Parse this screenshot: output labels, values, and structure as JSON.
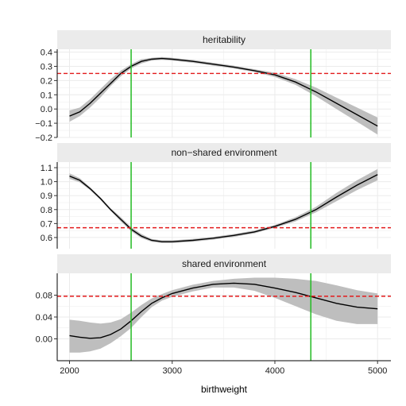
{
  "chart_data": {
    "type": "line",
    "xlabel": "birthweight",
    "xlim": [
      1880,
      5130
    ],
    "x_ticks": [
      2000,
      3000,
      4000,
      5000
    ],
    "x_tick_labels": [
      "2000",
      "3000",
      "4000",
      "5000"
    ],
    "vertical_lines": {
      "x": [
        2600,
        4350
      ],
      "color": "#22bb22"
    },
    "colors": {
      "line": "#000000",
      "ribbon": "#bebebe",
      "reference": "#e31a1c",
      "strip": "#ebebeb",
      "grid": "#ebebeb"
    },
    "grid": true,
    "panels": [
      {
        "title": "heritability",
        "ylim": [
          -0.2,
          0.42
        ],
        "y_ticks": [
          -0.2,
          -0.1,
          0.0,
          0.1,
          0.2,
          0.3,
          0.4
        ],
        "y_tick_labels": [
          "−0.2",
          "−0.1",
          "0.0",
          "0.1",
          "0.2",
          "0.3",
          "0.4"
        ],
        "hline": 0.25,
        "x": [
          2000,
          2100,
          2200,
          2300,
          2400,
          2500,
          2600,
          2700,
          2800,
          2900,
          3000,
          3200,
          3400,
          3600,
          3800,
          4000,
          4200,
          4400,
          4600,
          4800,
          5000
        ],
        "y": [
          -0.05,
          -0.02,
          0.04,
          0.11,
          0.18,
          0.25,
          0.3,
          0.335,
          0.35,
          0.355,
          0.35,
          0.335,
          0.315,
          0.295,
          0.27,
          0.24,
          0.19,
          0.12,
          0.04,
          -0.04,
          -0.12
        ],
        "lower": [
          -0.09,
          -0.05,
          0.01,
          0.08,
          0.16,
          0.23,
          0.285,
          0.32,
          0.34,
          0.345,
          0.34,
          0.325,
          0.305,
          0.285,
          0.26,
          0.225,
          0.17,
          0.09,
          0.0,
          -0.09,
          -0.18
        ],
        "upper": [
          -0.01,
          0.01,
          0.07,
          0.14,
          0.21,
          0.27,
          0.315,
          0.35,
          0.36,
          0.365,
          0.36,
          0.345,
          0.325,
          0.305,
          0.28,
          0.255,
          0.21,
          0.15,
          0.08,
          0.01,
          -0.06
        ]
      },
      {
        "title": "non−shared environment",
        "ylim": [
          0.52,
          1.14
        ],
        "y_ticks": [
          0.6,
          0.7,
          0.8,
          0.9,
          1.0,
          1.1
        ],
        "y_tick_labels": [
          "0.6",
          "0.7",
          "0.8",
          "0.9",
          "1.0",
          "1.1"
        ],
        "hline": 0.67,
        "x": [
          2000,
          2100,
          2200,
          2300,
          2400,
          2500,
          2600,
          2700,
          2800,
          2900,
          3000,
          3200,
          3400,
          3600,
          3800,
          4000,
          4200,
          4400,
          4600,
          4800,
          5000
        ],
        "y": [
          1.04,
          1.01,
          0.95,
          0.88,
          0.8,
          0.73,
          0.66,
          0.61,
          0.58,
          0.57,
          0.57,
          0.58,
          0.595,
          0.615,
          0.64,
          0.68,
          0.73,
          0.8,
          0.89,
          0.975,
          1.05
        ],
        "lower": [
          1.02,
          0.995,
          0.94,
          0.87,
          0.79,
          0.715,
          0.645,
          0.595,
          0.57,
          0.56,
          0.56,
          0.57,
          0.585,
          0.605,
          0.63,
          0.67,
          0.715,
          0.78,
          0.86,
          0.94,
          1.01
        ],
        "upper": [
          1.06,
          1.025,
          0.96,
          0.89,
          0.81,
          0.745,
          0.675,
          0.625,
          0.59,
          0.58,
          0.58,
          0.59,
          0.605,
          0.625,
          0.65,
          0.69,
          0.745,
          0.82,
          0.92,
          1.01,
          1.09
        ]
      },
      {
        "title": "shared environment",
        "ylim": [
          -0.04,
          0.12
        ],
        "y_ticks": [
          0.0,
          0.04,
          0.08
        ],
        "y_tick_labels": [
          "0.00",
          "0.04",
          "0.08"
        ],
        "hline": 0.078,
        "x": [
          2000,
          2100,
          2200,
          2300,
          2400,
          2500,
          2600,
          2700,
          2800,
          2900,
          3000,
          3200,
          3400,
          3600,
          3800,
          4000,
          4200,
          4400,
          4600,
          4800,
          5000
        ],
        "y": [
          0.006,
          0.003,
          0.001,
          0.002,
          0.008,
          0.018,
          0.033,
          0.05,
          0.065,
          0.075,
          0.083,
          0.093,
          0.1,
          0.102,
          0.1,
          0.093,
          0.085,
          0.075,
          0.065,
          0.058,
          0.055
        ],
        "lower": [
          -0.025,
          -0.025,
          -0.023,
          -0.018,
          -0.008,
          0.005,
          0.02,
          0.04,
          0.058,
          0.07,
          0.077,
          0.087,
          0.094,
          0.094,
          0.088,
          0.075,
          0.06,
          0.045,
          0.033,
          0.027,
          0.027
        ],
        "upper": [
          0.035,
          0.033,
          0.03,
          0.028,
          0.03,
          0.036,
          0.048,
          0.062,
          0.074,
          0.082,
          0.089,
          0.099,
          0.106,
          0.11,
          0.112,
          0.112,
          0.11,
          0.106,
          0.098,
          0.089,
          0.083
        ]
      }
    ]
  }
}
